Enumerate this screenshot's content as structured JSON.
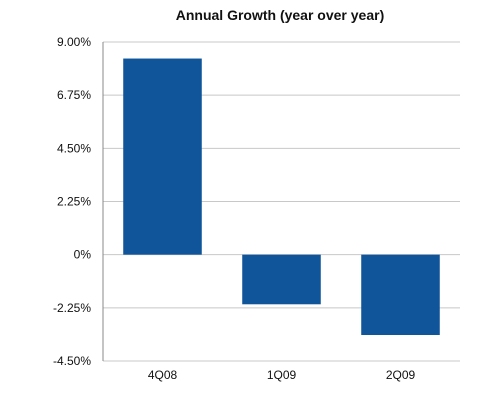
{
  "chart_data": {
    "type": "bar",
    "title": "Annual Growth (year over year)",
    "xlabel": "",
    "ylabel": "",
    "categories": [
      "4Q08",
      "1Q09",
      "2Q09"
    ],
    "values": [
      8.3,
      -2.1,
      -3.4
    ],
    "ylim": [
      -4.5,
      9.0
    ],
    "yticks": [
      9.0,
      6.75,
      4.5,
      2.25,
      0,
      -2.25,
      -4.5
    ],
    "ytick_labels": [
      "9.00%",
      "6.75%",
      "4.50%",
      "2.25%",
      "0%",
      "-2.25%",
      "-4.50%"
    ],
    "grid": true,
    "legend": "none",
    "colors": {
      "bar": "#10559a",
      "grid": "#c8c8c8",
      "axis": "#888888",
      "text": "#111111"
    }
  }
}
